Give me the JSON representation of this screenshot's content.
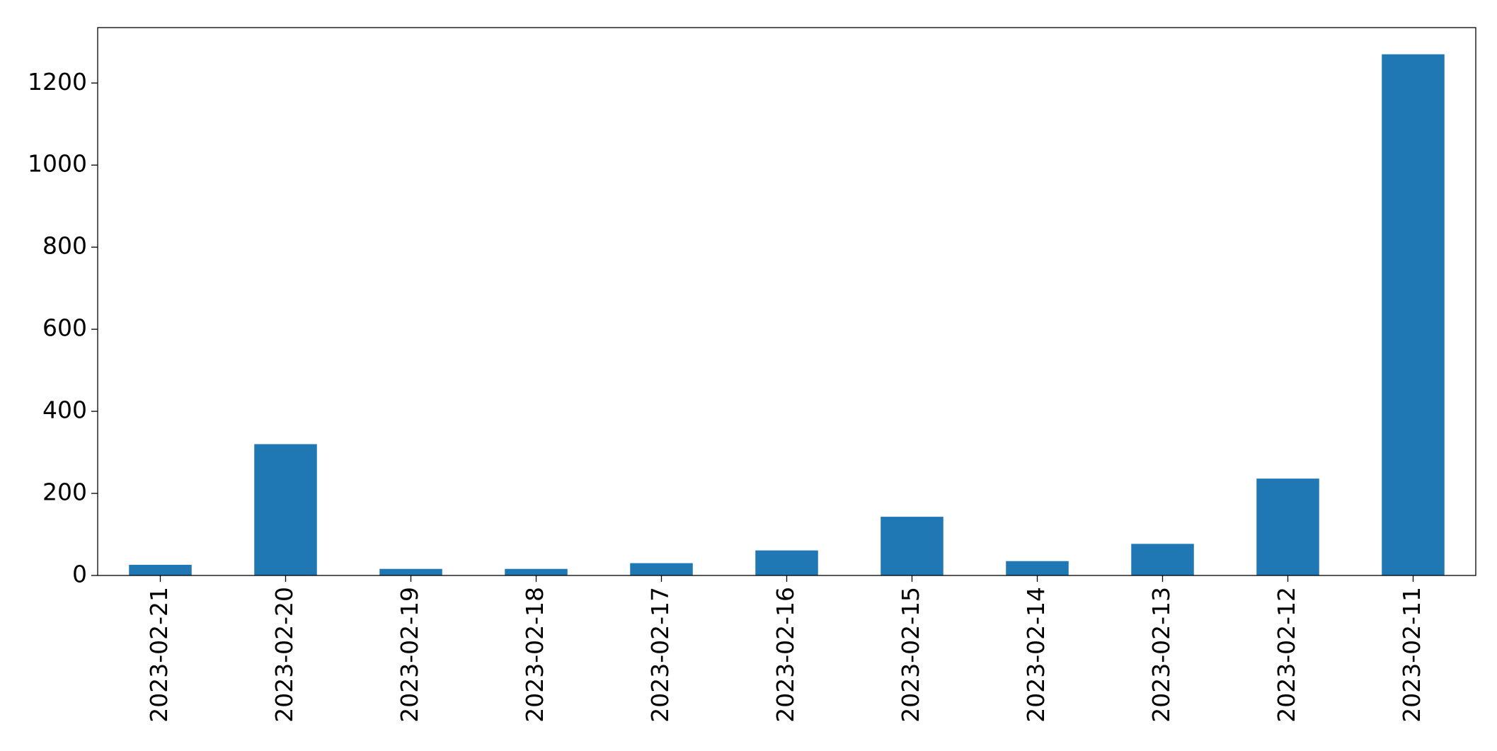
{
  "chart_data": {
    "type": "bar",
    "categories": [
      "2023-02-21",
      "2023-02-20",
      "2023-02-19",
      "2023-02-18",
      "2023-02-17",
      "2023-02-16",
      "2023-02-15",
      "2023-02-14",
      "2023-02-13",
      "2023-02-12",
      "2023-02-11"
    ],
    "values": [
      26,
      320,
      16,
      16,
      30,
      61,
      143,
      35,
      77,
      236,
      1270
    ],
    "color": "#1f77b4",
    "ylim": [
      0,
      1335
    ],
    "yticks": [
      0,
      200,
      400,
      600,
      800,
      1000,
      1200
    ],
    "grid": false
  }
}
